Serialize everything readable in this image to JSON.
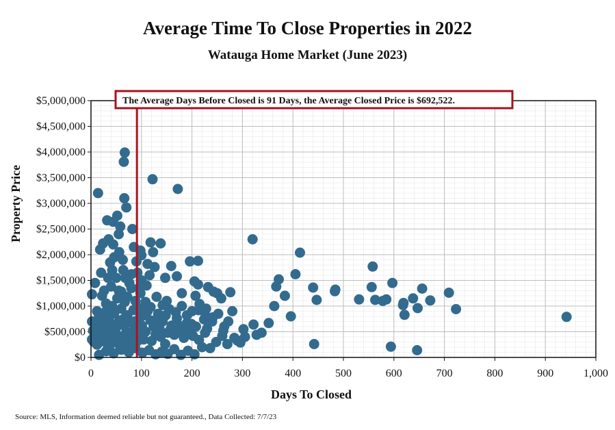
{
  "chart_data": {
    "type": "scatter",
    "title": "Average Time To Close Properties in 2022",
    "subtitle": "Watauga Home Market (June 2023)",
    "xlabel": "Days To Closed",
    "ylabel": "Property Price",
    "xlim": [
      0,
      1000
    ],
    "ylim": [
      0,
      5000000
    ],
    "x_ticks": [
      0,
      100,
      200,
      300,
      400,
      500,
      600,
      700,
      800,
      900,
      1000
    ],
    "x_tick_labels": [
      "0",
      "100",
      "200",
      "300",
      "400",
      "500",
      "600",
      "700",
      "800",
      "900",
      "1,000"
    ],
    "y_ticks": [
      0,
      500000,
      1000000,
      1500000,
      2000000,
      2500000,
      3000000,
      3500000,
      4000000,
      4500000,
      5000000
    ],
    "y_tick_labels": [
      "$0",
      "$500,000",
      "$1,000,000",
      "$1,500,000",
      "$2,000,000",
      "$2,500,000",
      "$3,000,000",
      "$3,500,000",
      "$4,000,000",
      "$4,500,000",
      "$5,000,000"
    ],
    "grid": true,
    "marker_color": "#336b8e",
    "average_line": {
      "x": 91,
      "color": "#b01020"
    },
    "annotation": "The Average Days Before Closed is 91 Days, the Average Closed Price is $692,522.",
    "source": "Source: MLS, Information deemed reliable but not guaranteed., Data Collected: 7/7/23",
    "points": [
      [
        67,
        3990000
      ],
      [
        65,
        3810000
      ],
      [
        122,
        3470000
      ],
      [
        172,
        3280000
      ],
      [
        14,
        3200000
      ],
      [
        66,
        3100000
      ],
      [
        70,
        2920000
      ],
      [
        52,
        2760000
      ],
      [
        32,
        2670000
      ],
      [
        44,
        2640000
      ],
      [
        58,
        2550000
      ],
      [
        82,
        2500000
      ],
      [
        55,
        2400000
      ],
      [
        35,
        2300000
      ],
      [
        24,
        2220000
      ],
      [
        44,
        2200000
      ],
      [
        85,
        2150000
      ],
      [
        118,
        2240000
      ],
      [
        138,
        2220000
      ],
      [
        18,
        2100000
      ],
      [
        98,
        2080000
      ],
      [
        123,
        2050000
      ],
      [
        100,
        1990000
      ],
      [
        63,
        1900000
      ],
      [
        90,
        1870000
      ],
      [
        112,
        1820000
      ],
      [
        126,
        1760000
      ],
      [
        159,
        1780000
      ],
      [
        196,
        1870000
      ],
      [
        212,
        1880000
      ],
      [
        38,
        1850000
      ],
      [
        20,
        1650000
      ],
      [
        170,
        1580000
      ],
      [
        80,
        1620000
      ],
      [
        147,
        1550000
      ],
      [
        205,
        1480000
      ],
      [
        8,
        1450000
      ],
      [
        100,
        1500000
      ],
      [
        232,
        1370000
      ],
      [
        212,
        1420000
      ],
      [
        110,
        1400000
      ],
      [
        95,
        1350000
      ],
      [
        243,
        1280000
      ],
      [
        250,
        1250000
      ],
      [
        276,
        1270000
      ],
      [
        2,
        1230000
      ],
      [
        207,
        1200000
      ],
      [
        258,
        1150000
      ],
      [
        180,
        1250000
      ],
      [
        55,
        1300000
      ],
      [
        30,
        1050000
      ],
      [
        150,
        1100000
      ],
      [
        320,
        2300000
      ],
      [
        414,
        2040000
      ],
      [
        405,
        1620000
      ],
      [
        372,
        1520000
      ],
      [
        367,
        1380000
      ],
      [
        384,
        1200000
      ],
      [
        363,
        1000000
      ],
      [
        396,
        800000
      ],
      [
        440,
        1360000
      ],
      [
        447,
        1120000
      ],
      [
        484,
        1320000
      ],
      [
        483,
        1290000
      ],
      [
        531,
        1130000
      ],
      [
        558,
        1770000
      ],
      [
        556,
        1370000
      ],
      [
        563,
        1120000
      ],
      [
        578,
        1100000
      ],
      [
        585,
        1130000
      ],
      [
        597,
        1450000
      ],
      [
        618,
        1020000
      ],
      [
        619,
        1060000
      ],
      [
        621,
        830000
      ],
      [
        638,
        1150000
      ],
      [
        647,
        960000
      ],
      [
        656,
        1340000
      ],
      [
        672,
        1110000
      ],
      [
        709,
        1260000
      ],
      [
        723,
        940000
      ],
      [
        942,
        790000
      ],
      [
        442,
        260000
      ],
      [
        594,
        210000
      ],
      [
        646,
        140000
      ],
      [
        352,
        670000
      ],
      [
        338,
        480000
      ],
      [
        322,
        640000
      ],
      [
        302,
        550000
      ],
      [
        305,
        400000
      ],
      [
        328,
        440000
      ],
      [
        290,
        330000
      ],
      [
        264,
        600000
      ],
      [
        260,
        420000
      ],
      [
        241,
        780000
      ],
      [
        230,
        560000
      ],
      [
        224,
        740000
      ],
      [
        225,
        880000
      ],
      [
        213,
        920000
      ],
      [
        208,
        600000
      ],
      [
        199,
        650000
      ],
      [
        196,
        460000
      ],
      [
        190,
        670000
      ],
      [
        184,
        380000
      ],
      [
        176,
        520000
      ],
      [
        170,
        760000
      ],
      [
        165,
        440000
      ],
      [
        160,
        620000
      ],
      [
        152,
        480000
      ],
      [
        147,
        260000
      ],
      [
        142,
        700000
      ],
      [
        136,
        550000
      ],
      [
        133,
        850000
      ],
      [
        128,
        450000
      ],
      [
        124,
        600000
      ],
      [
        120,
        320000
      ],
      [
        118,
        720000
      ],
      [
        112,
        900000
      ],
      [
        108,
        500000
      ],
      [
        104,
        350000
      ],
      [
        101,
        620000
      ],
      [
        97,
        780000
      ],
      [
        93,
        450000
      ],
      [
        90,
        300000
      ],
      [
        87,
        560000
      ],
      [
        84,
        920000
      ],
      [
        81,
        400000
      ],
      [
        78,
        680000
      ],
      [
        75,
        250000
      ],
      [
        72,
        820000
      ],
      [
        70,
        500000
      ],
      [
        67,
        1080000
      ],
      [
        65,
        350000
      ],
      [
        63,
        640000
      ],
      [
        60,
        950000
      ],
      [
        58,
        200000
      ],
      [
        56,
        720000
      ],
      [
        54,
        420000
      ],
      [
        52,
        1150000
      ],
      [
        50,
        580000
      ],
      [
        48,
        300000
      ],
      [
        46,
        860000
      ],
      [
        44,
        480000
      ],
      [
        42,
        1000000
      ],
      [
        40,
        650000
      ],
      [
        38,
        250000
      ],
      [
        36,
        780000
      ],
      [
        34,
        400000
      ],
      [
        32,
        560000
      ],
      [
        30,
        900000
      ],
      [
        28,
        300000
      ],
      [
        26,
        700000
      ],
      [
        24,
        450000
      ],
      [
        22,
        1200000
      ],
      [
        20,
        600000
      ],
      [
        18,
        350000
      ],
      [
        16,
        800000
      ],
      [
        14,
        480000
      ],
      [
        12,
        250000
      ],
      [
        10,
        650000
      ],
      [
        8,
        400000
      ],
      [
        6,
        300000
      ],
      [
        4,
        520000
      ],
      [
        2,
        700000
      ],
      [
        2,
        350000
      ],
      [
        16,
        50000
      ],
      [
        30,
        120000
      ],
      [
        45,
        80000
      ],
      [
        60,
        150000
      ],
      [
        75,
        100000
      ],
      [
        88,
        180000
      ],
      [
        102,
        90000
      ],
      [
        115,
        140000
      ],
      [
        128,
        60000
      ],
      [
        140,
        110000
      ],
      [
        152,
        70000
      ],
      [
        165,
        160000
      ],
      [
        178,
        50000
      ],
      [
        192,
        130000
      ],
      [
        205,
        60000
      ],
      [
        220,
        200000
      ],
      [
        236,
        180000
      ],
      [
        248,
        300000
      ],
      [
        270,
        260000
      ],
      [
        284,
        380000
      ],
      [
        296,
        290000
      ],
      [
        98,
        1250000
      ],
      [
        88,
        1100000
      ],
      [
        76,
        1450000
      ],
      [
        64,
        1700000
      ],
      [
        50,
        1550000
      ],
      [
        46,
        1950000
      ],
      [
        40,
        1380000
      ],
      [
        60,
        1280000
      ],
      [
        72,
        1180000
      ],
      [
        108,
        1080000
      ],
      [
        118,
        980000
      ],
      [
        130,
        1180000
      ],
      [
        142,
        1020000
      ],
      [
        155,
        940000
      ],
      [
        168,
        880000
      ],
      [
        180,
        1000000
      ],
      [
        190,
        820000
      ],
      [
        200,
        900000
      ],
      [
        215,
        1040000
      ],
      [
        228,
        950000
      ],
      [
        240,
        700000
      ],
      [
        252,
        850000
      ],
      [
        262,
        520000
      ],
      [
        272,
        700000
      ],
      [
        280,
        900000
      ],
      [
        34,
        1550000
      ],
      [
        26,
        1300000
      ],
      [
        42,
        1700000
      ],
      [
        56,
        2050000
      ],
      [
        68,
        1550000
      ],
      [
        80,
        1350000
      ],
      [
        92,
        1650000
      ],
      [
        104,
        1400000
      ],
      [
        116,
        1600000
      ],
      [
        12,
        900000
      ],
      [
        22,
        800000
      ],
      [
        58,
        380000
      ],
      [
        66,
        760000
      ],
      [
        86,
        700000
      ],
      [
        96,
        960000
      ],
      [
        106,
        820000
      ],
      [
        126,
        720000
      ],
      [
        138,
        400000
      ],
      [
        148,
        820000
      ],
      [
        158,
        560000
      ],
      [
        174,
        620000
      ],
      [
        186,
        520000
      ],
      [
        202,
        420000
      ],
      [
        214,
        340000
      ],
      [
        226,
        480000
      ]
    ]
  }
}
